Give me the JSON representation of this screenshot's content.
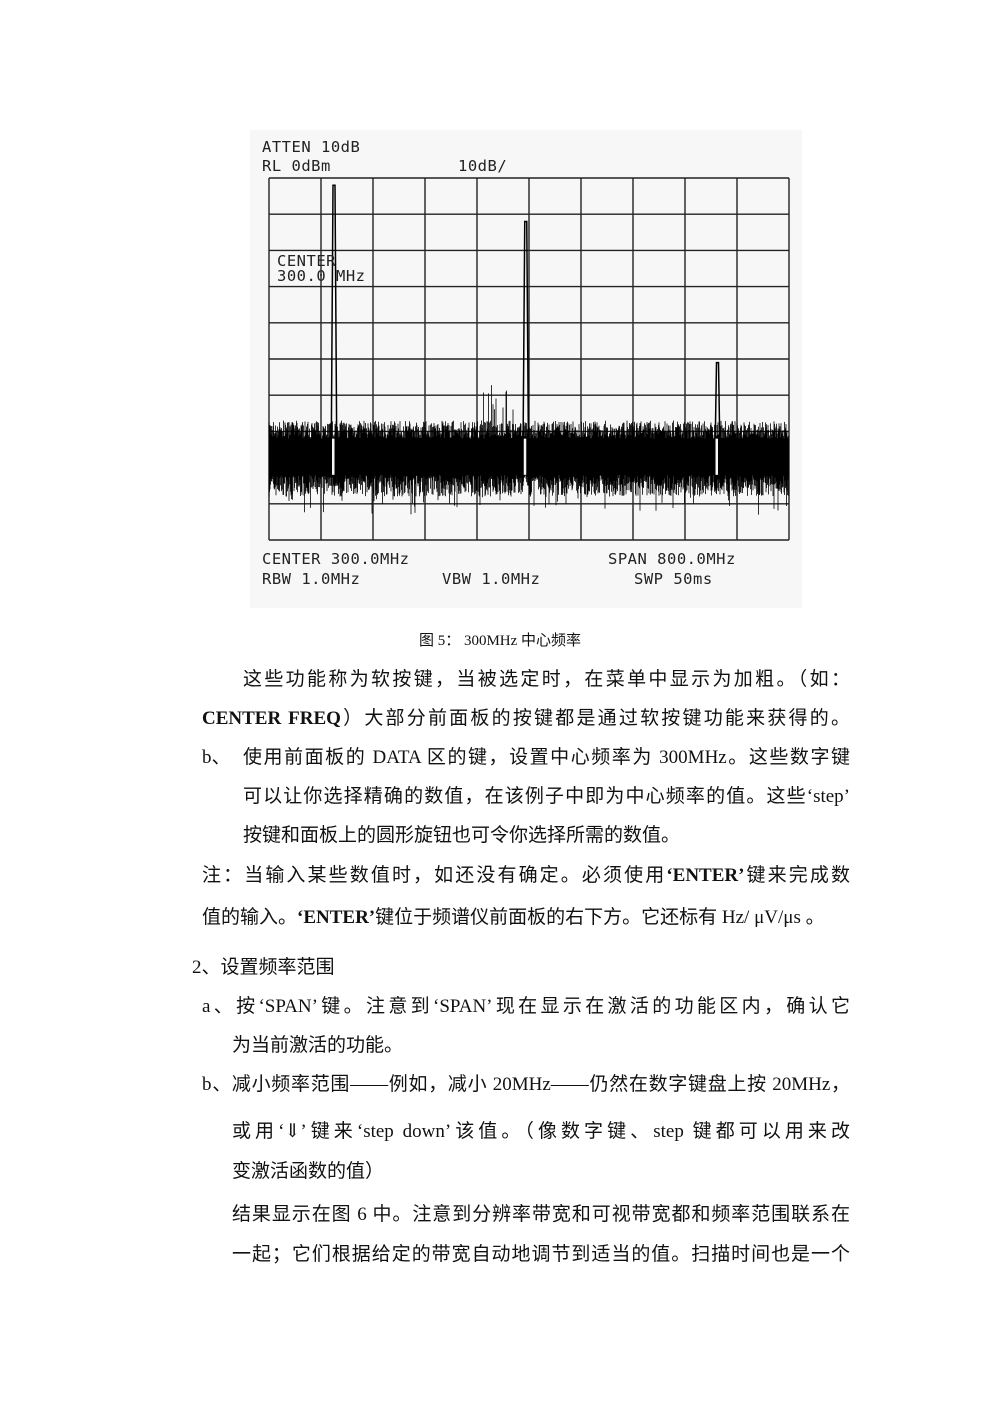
{
  "figure": {
    "atten": "ATTEN 10dB",
    "ref_level": "RL 0dBm",
    "scale": "10dB/",
    "active_function_label": "CENTER",
    "active_function_value": "300.0 MHz",
    "center": "CENTER 300.0MHz",
    "span": "SPAN 800.0MHz",
    "rbw": "RBW 1.0MHz",
    "vbw": "VBW 1.0MHz",
    "sweep": "SWP 50ms",
    "trace": {
      "freq_range_mhz": [
        -100,
        700
      ],
      "ref_level_dbm": 0,
      "db_per_div": 10,
      "divisions": 10,
      "noise_floor_dbm": [
        -85,
        -70
      ],
      "peaks": [
        {
          "freq_mhz": 0,
          "level_dbm": -2
        },
        {
          "freq_mhz": 295,
          "level_dbm": -12
        },
        {
          "freq_mhz": 590,
          "level_dbm": -51
        }
      ],
      "color": "#000000",
      "grid_color": "#222222"
    }
  },
  "caption": "图 5：  300MHz 中心频率",
  "body": {
    "p1_l1": "这些功能称为软按键，当被选定时，在菜单中显示为加粗。（如：",
    "p1_l2_bold": "CENTER FREQ",
    "p1_l2": "）大部分前面板的按键都是通过软按键功能来获得的。",
    "b1_marker": "b、",
    "b1_l1": "使用前面板的 DATA 区的键，设置中心频率为 300MHz。这些数字键",
    "b1_l2": "可以让你选择精确的数值，在该例子中即为中心频率的值。这些‘step’",
    "b1_l3": "按键和面板上的圆形旋钮也可令你选择所需的数值。",
    "note_l1_a": "注：当输入某些数值时，如还没有确定。必须使用",
    "note_l1_bold": "‘ENTER’",
    "note_l1_b": "键来完成数",
    "note_l2_a": "值的输入。",
    "note_l2_bold": "‘ENTER’",
    "note_l2_b": "键位于频谱仪前面板的右下方。它还标有 Hz/ μV/μs 。",
    "section2": "2、设置频率范围",
    "a_l1": "a、按‘SPAN’键。注意到‘SPAN’现在显示在激活的功能区内，确认它",
    "a_l2": "为当前激活的功能。",
    "b2_l1": "b、减小频率范围——例如，减小 20MHz——仍然在数字键盘上按 20MHz，",
    "b2_l2": "或用‘⇓’键来‘step  down’该值。（像数字键、step 键都可以用来改",
    "b2_l3": "变激活函数的值）",
    "r_l1": "结果显示在图 6 中。注意到分辨率带宽和可视带宽都和频率范围联系在",
    "r_l2": "一起；它们根据给定的带宽自动地调节到适当的值。扫描时间也是一个"
  }
}
